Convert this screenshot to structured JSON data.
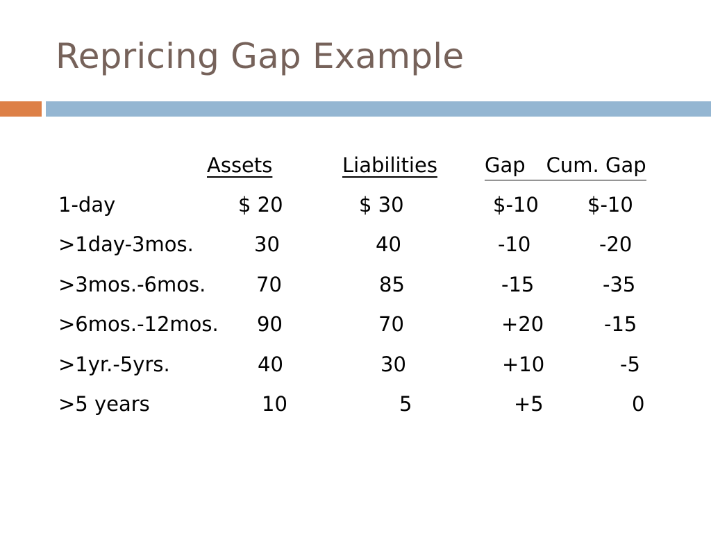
{
  "slide": {
    "title": "Repricing Gap Example",
    "colors": {
      "title": "#76625A",
      "accent_orange": "#DD8047",
      "accent_blue": "#94B6D2"
    }
  },
  "table": {
    "headers": {
      "assets": "Assets",
      "liabilities": "Liabilities",
      "gap": "Gap",
      "cum_gap": "Cum. Gap"
    },
    "rows": [
      {
        "label": "1-day",
        "assets": "$ 20",
        "liabilities": "$ 30",
        "gap": "$-10",
        "cum_gap": "$-10"
      },
      {
        "label": ">1day-3mos.",
        "assets": "30",
        "liabilities": "40",
        "gap": "-10",
        "cum_gap": "-20"
      },
      {
        "label": ">3mos.-6mos.",
        "assets": "70",
        "liabilities": "85",
        "gap": "-15",
        "cum_gap": "-35"
      },
      {
        "label": ">6mos.-12mos.",
        "assets": "90",
        "liabilities": "70",
        "gap": "+20",
        "cum_gap": "-15"
      },
      {
        "label": ">1yr.-5yrs.",
        "assets": "40",
        "liabilities": "30",
        "gap": "+10",
        "cum_gap": "-5"
      },
      {
        "label": ">5 years",
        "assets": "10",
        "liabilities": "5",
        "gap": "+5",
        "cum_gap": "0"
      }
    ]
  }
}
